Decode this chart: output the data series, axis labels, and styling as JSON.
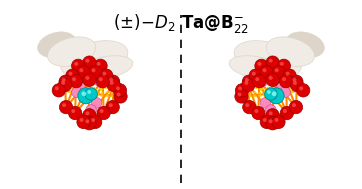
{
  "background_color": "#ffffff",
  "fig_width": 3.62,
  "fig_height": 1.89,
  "dpi": 100,
  "hand_color_light": "#f0ebe4",
  "hand_color_mid": "#ddd5ca",
  "hand_color_dark": "#c8bfb4",
  "boron_color": "#dd0000",
  "boron_edge": "#990000",
  "ta_color": "#00c8c8",
  "ta_edge": "#008888",
  "bond_color": "#ff8800",
  "bond_dark": "#cc6600",
  "dotted_color": "#ffcc00",
  "pink_color": "#ff88bb",
  "pink_edge": "#cc4488",
  "title_fontsize": 12,
  "mol_scale": 0.9
}
